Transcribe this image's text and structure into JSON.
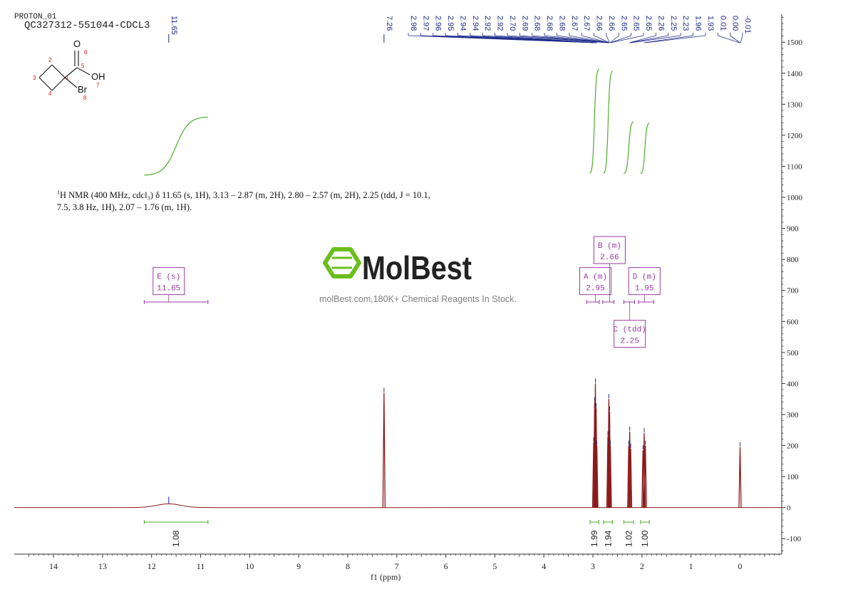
{
  "header": {
    "experiment": "PROTON_01",
    "sample": "QC327312-551044-CDCL3"
  },
  "structure": {
    "atom_labels": [
      "1",
      "2",
      "3",
      "4",
      "5",
      "6",
      "7",
      "8"
    ],
    "oxygen": "O",
    "hydroxyl": "OH",
    "bromine": "Br"
  },
  "nmr_summary": {
    "nucleus": "1",
    "line1": "H NMR (400 MHz, cdcl₃) δ 11.65 (s, 1H), 3.13 – 2.87 (m, 2H), 2.80 – 2.57 (m, 2H), 2.25 (tdd, J = 10.1,",
    "line2": "7.5, 3.8 Hz, 1H), 2.07 – 1.76 (m, 1H)."
  },
  "watermark": {
    "brand": "MolBest",
    "tagline": "molBest.com,180K+ Chemical Reagents In Stock."
  },
  "colors": {
    "spectrum": "#8b1a1a",
    "peak_label": "#1f2d8a",
    "integral": "#4caf2a",
    "multiplet": "#9b3aa0",
    "axis": "#333333",
    "logo_green": "#6abf1c",
    "logo_text": "#222222"
  },
  "chart_data": {
    "type": "line",
    "title": "",
    "xlabel": "f1 (ppm)",
    "ylabel": "",
    "x_ticks": [
      "14",
      "13",
      "12",
      "11",
      "10",
      "9",
      "8",
      "7",
      "6",
      "5",
      "4",
      "3",
      "2",
      "1",
      "0"
    ],
    "y_ticks": [
      "1500",
      "1400",
      "1300",
      "1200",
      "1100",
      "1000",
      "900",
      "800",
      "700",
      "600",
      "500",
      "400",
      "300",
      "200",
      "100",
      "0",
      "-100"
    ],
    "xlim": [
      14.8,
      -0.85
    ],
    "ylim": [
      -150,
      1590
    ],
    "peak_labels": [
      {
        "text": "11.65",
        "ppm": 11.65
      },
      {
        "text": "7.26",
        "ppm": 7.26
      },
      {
        "text": "2.98",
        "ppm": 2.98
      },
      {
        "text": "2.97",
        "ppm": 2.97
      },
      {
        "text": "2.96",
        "ppm": 2.96
      },
      {
        "text": "2.95",
        "ppm": 2.95
      },
      {
        "text": "2.94",
        "ppm": 2.94
      },
      {
        "text": "2.94",
        "ppm": 2.94
      },
      {
        "text": "2.92",
        "ppm": 2.92
      },
      {
        "text": "2.92",
        "ppm": 2.92
      },
      {
        "text": "2.70",
        "ppm": 2.7
      },
      {
        "text": "2.69",
        "ppm": 2.69
      },
      {
        "text": "2.68",
        "ppm": 2.68
      },
      {
        "text": "2.68",
        "ppm": 2.68
      },
      {
        "text": "2.68",
        "ppm": 2.68
      },
      {
        "text": "2.67",
        "ppm": 2.67
      },
      {
        "text": "2.67",
        "ppm": 2.67
      },
      {
        "text": "2.66",
        "ppm": 2.66
      },
      {
        "text": "2.66",
        "ppm": 2.66
      },
      {
        "text": "2.65",
        "ppm": 2.65
      },
      {
        "text": "2.65",
        "ppm": 2.65
      },
      {
        "text": "2.65",
        "ppm": 2.65
      },
      {
        "text": "2.26",
        "ppm": 2.26
      },
      {
        "text": "2.25",
        "ppm": 2.25
      },
      {
        "text": "2.23",
        "ppm": 2.23
      },
      {
        "text": "1.96",
        "ppm": 1.96
      },
      {
        "text": "1.93",
        "ppm": 1.93
      },
      {
        "text": "0.01",
        "ppm": 0.01
      },
      {
        "text": "0.00",
        "ppm": 0.0
      },
      {
        "text": "-0.01",
        "ppm": -0.01
      }
    ],
    "peaks": [
      {
        "ppm": 11.65,
        "height": 12,
        "width": 0.35
      },
      {
        "ppm": 7.26,
        "height": 370,
        "width": 0.006
      },
      {
        "ppm": 2.985,
        "height": 210,
        "width": 0.006
      },
      {
        "ppm": 2.965,
        "height": 340,
        "width": 0.006
      },
      {
        "ppm": 2.95,
        "height": 400,
        "width": 0.006
      },
      {
        "ppm": 2.935,
        "height": 320,
        "width": 0.006
      },
      {
        "ppm": 2.92,
        "height": 200,
        "width": 0.006
      },
      {
        "ppm": 2.695,
        "height": 230,
        "width": 0.006
      },
      {
        "ppm": 2.675,
        "height": 350,
        "width": 0.006
      },
      {
        "ppm": 2.66,
        "height": 310,
        "width": 0.006
      },
      {
        "ppm": 2.645,
        "height": 200,
        "width": 0.006
      },
      {
        "ppm": 2.27,
        "height": 200,
        "width": 0.006
      },
      {
        "ppm": 2.25,
        "height": 245,
        "width": 0.006
      },
      {
        "ppm": 2.23,
        "height": 190,
        "width": 0.006
      },
      {
        "ppm": 1.98,
        "height": 185,
        "width": 0.006
      },
      {
        "ppm": 1.955,
        "height": 240,
        "width": 0.006
      },
      {
        "ppm": 1.93,
        "height": 200,
        "width": 0.006
      },
      {
        "ppm": 0.0,
        "height": 195,
        "width": 0.006
      }
    ],
    "integrals": [
      {
        "label": "1.08",
        "from": 12.15,
        "to": 10.85,
        "y_base": 1070,
        "y_top": 1260
      },
      {
        "label": "1.99",
        "from": 3.06,
        "to": 2.88,
        "y_base": 1075,
        "y_top": 1415
      },
      {
        "label": "1.94",
        "from": 2.78,
        "to": 2.6,
        "y_base": 1075,
        "y_top": 1410
      },
      {
        "label": "1.02",
        "from": 2.37,
        "to": 2.17,
        "y_base": 1075,
        "y_top": 1245
      },
      {
        "label": "1.00",
        "from": 2.03,
        "to": 1.85,
        "y_base": 1075,
        "y_top": 1240
      }
    ],
    "multiplets": [
      {
        "letter": "E",
        "kind": "(s)",
        "shift": "11.65",
        "range": [
          12.15,
          10.85
        ],
        "box_y": 730
      },
      {
        "letter": "A",
        "kind": "(m)",
        "shift": "2.95",
        "range": [
          3.13,
          2.87
        ],
        "box_y": 730
      },
      {
        "letter": "B",
        "kind": "(m)",
        "shift": "2.66",
        "range": [
          2.8,
          2.57
        ],
        "box_y": 830
      },
      {
        "letter": "C",
        "kind": "(tdd)",
        "shift": "2.25",
        "range": [
          2.37,
          2.15
        ],
        "box_y": 560
      },
      {
        "letter": "D",
        "kind": "(m)",
        "shift": "1.95",
        "range": [
          2.07,
          1.76
        ],
        "box_y": 730
      }
    ]
  }
}
